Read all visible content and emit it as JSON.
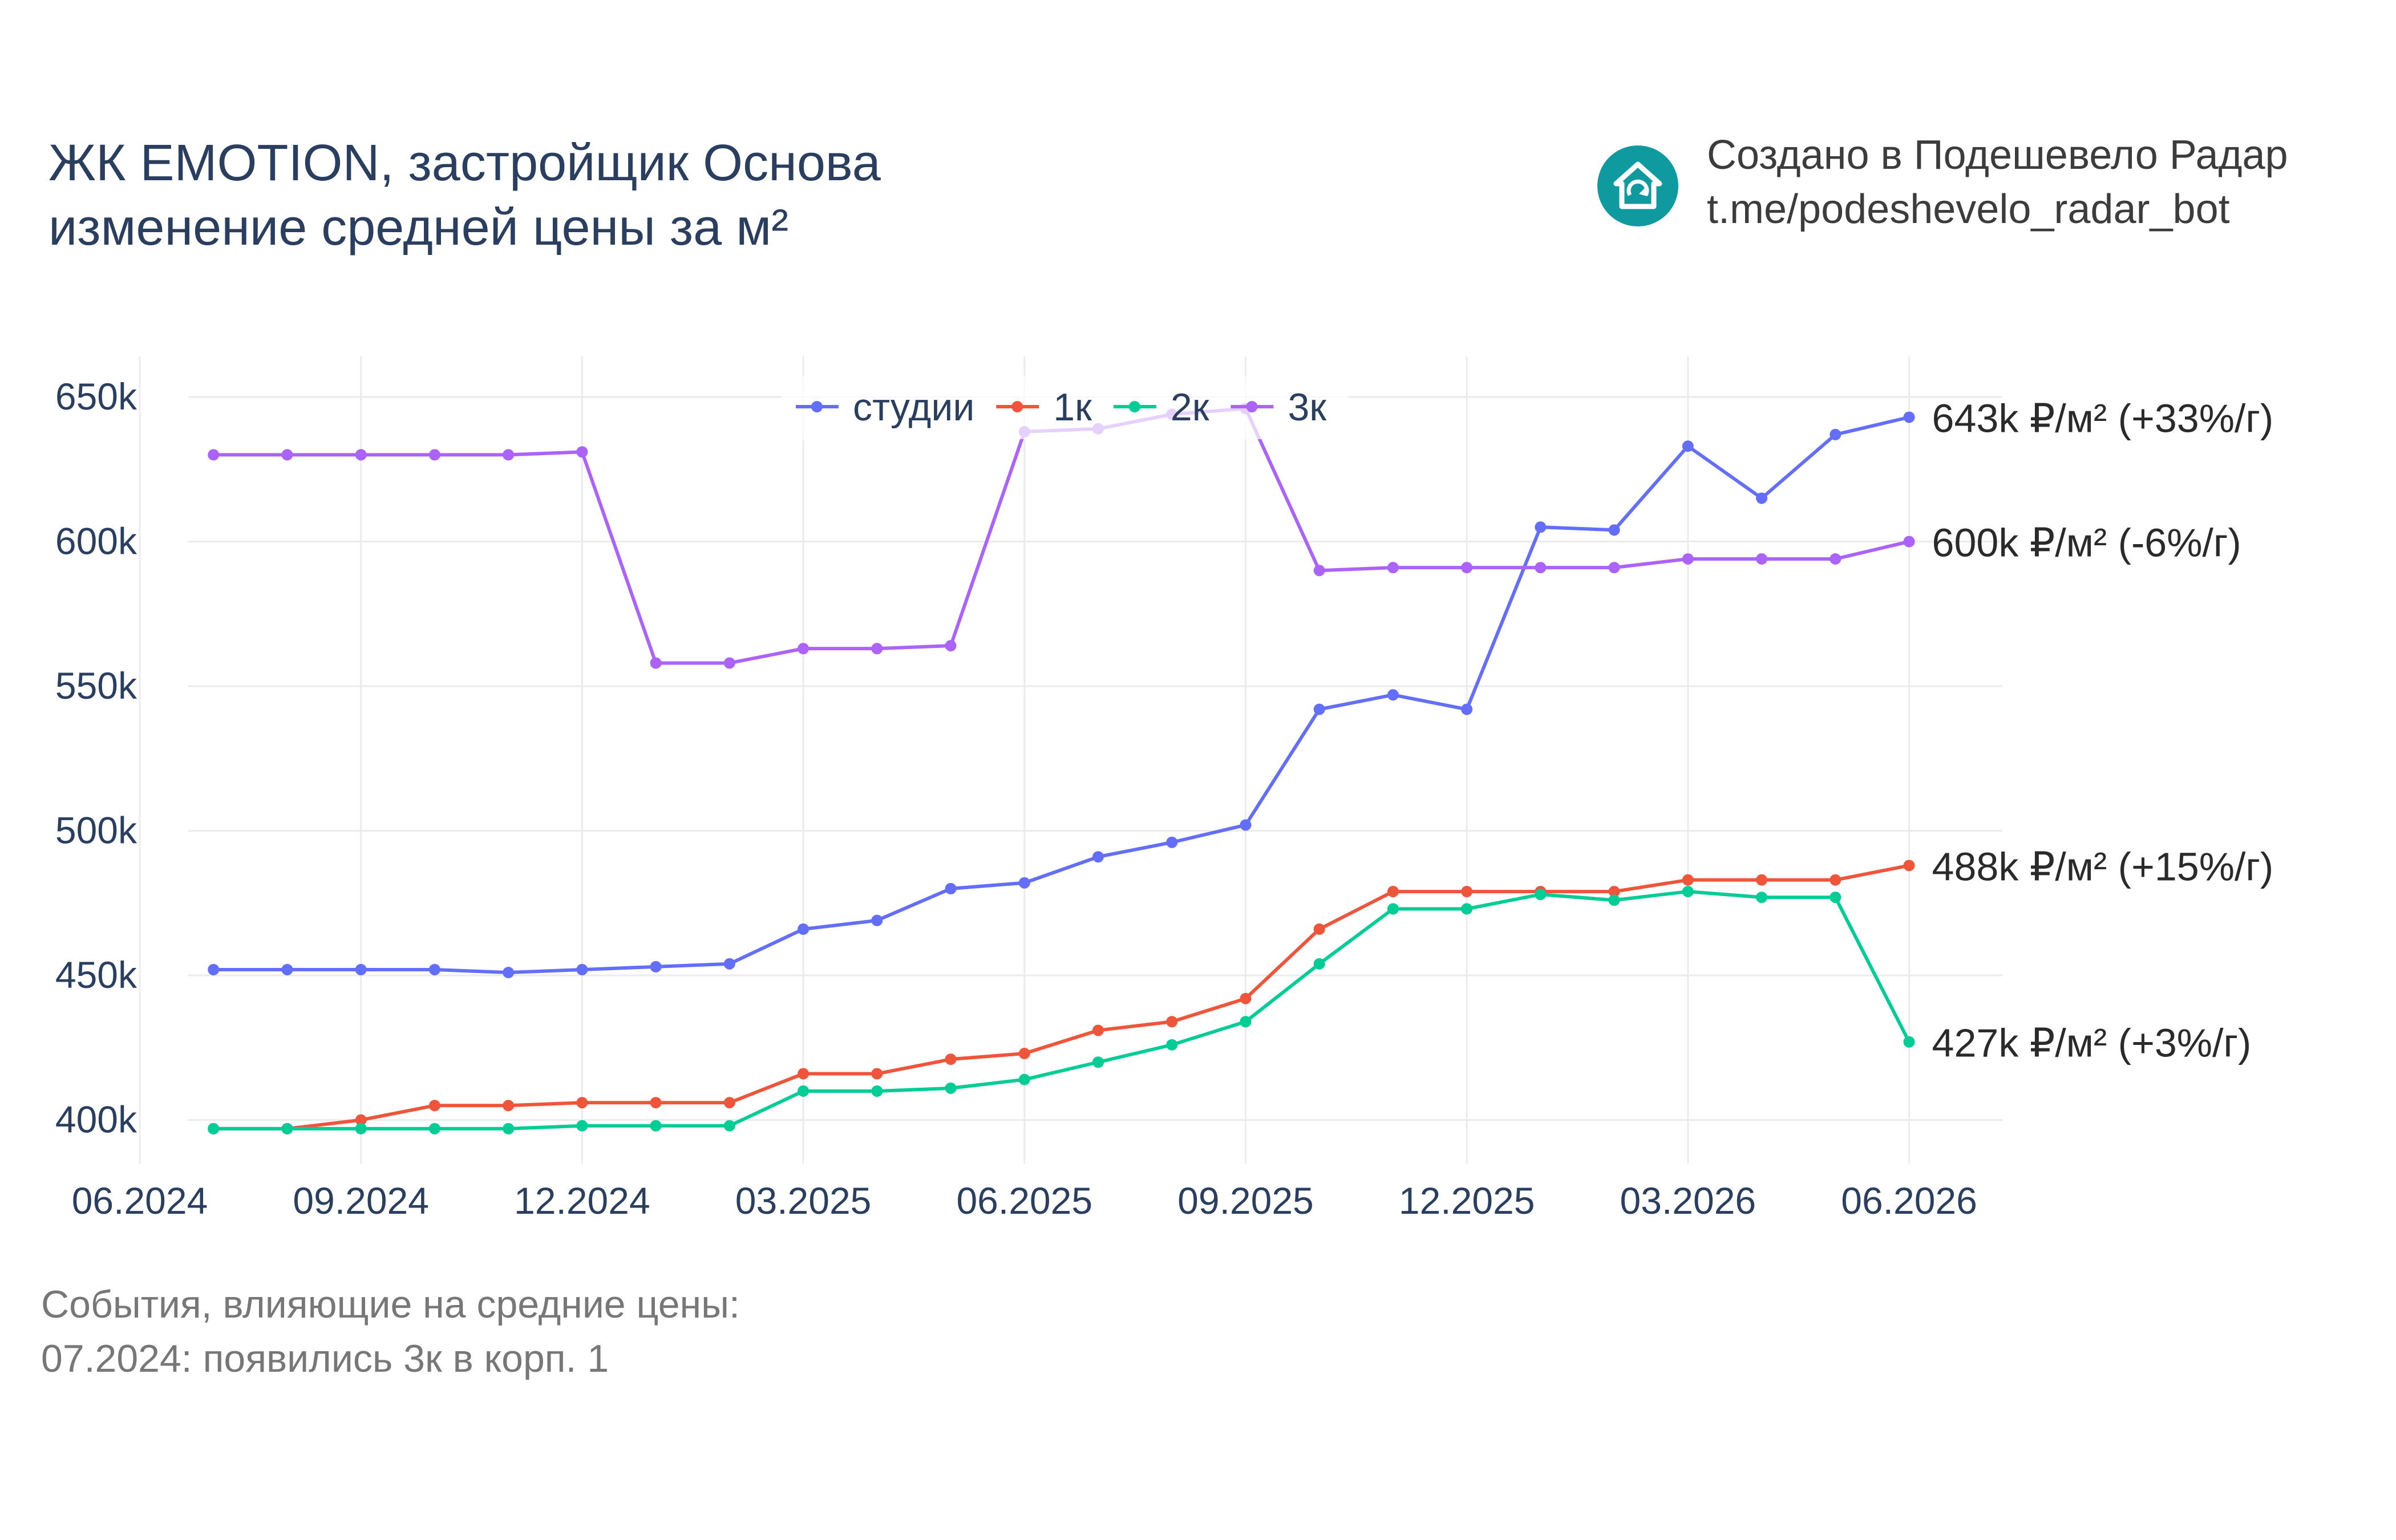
{
  "header": {
    "title_line1": "ЖК EMOTION, застройщик Основа",
    "title_line2": "изменение средней цены за м²"
  },
  "brand": {
    "line1": "Создано в Подешевело Радар",
    "line2": "t.me/podeshevelo_radar_bot",
    "logo_icon": "house-refresh-icon",
    "logo_color": "#0f9aa0"
  },
  "events": {
    "heading": "События, влияющие на средние цены:",
    "items": [
      "07.2024: появились 3к в корп. 1"
    ]
  },
  "chart_data": {
    "type": "line",
    "x": [
      "2024-07",
      "2024-08",
      "2024-09",
      "2024-10",
      "2024-11",
      "2024-12",
      "2025-01",
      "2025-02",
      "2025-03",
      "2025-04",
      "2025-05",
      "2025-06",
      "2025-07",
      "2025-08",
      "2025-09",
      "2025-10",
      "2025-11",
      "2025-12",
      "2026-01",
      "2026-02",
      "2026-03",
      "2026-04",
      "2026-05",
      "2026-06"
    ],
    "x_ticks": [
      {
        "date": "2024-06",
        "label": "06.2024"
      },
      {
        "date": "2024-09",
        "label": "09.2024"
      },
      {
        "date": "2024-12",
        "label": "12.2024"
      },
      {
        "date": "2025-03",
        "label": "03.2025"
      },
      {
        "date": "2025-06",
        "label": "06.2025"
      },
      {
        "date": "2025-09",
        "label": "09.2025"
      },
      {
        "date": "2025-12",
        "label": "12.2025"
      },
      {
        "date": "2026-03",
        "label": "03.2026"
      },
      {
        "date": "2026-06",
        "label": "06.2026"
      }
    ],
    "y_ticks": [
      {
        "value": 400000,
        "label": "400k"
      },
      {
        "value": 450000,
        "label": "450k"
      },
      {
        "value": 500000,
        "label": "500k"
      },
      {
        "value": 550000,
        "label": "550k"
      },
      {
        "value": 600000,
        "label": "600k"
      },
      {
        "value": 650000,
        "label": "650k"
      }
    ],
    "xlim": [
      "2024-06",
      "2026-08"
    ],
    "ylim": [
      381000,
      664000
    ],
    "grid": true,
    "legend_position": "top-center",
    "series": [
      {
        "name": "студии",
        "color": "#636efa",
        "values": [
          452000,
          452000,
          452000,
          452000,
          451000,
          452000,
          453000,
          454000,
          466000,
          469000,
          480000,
          482000,
          491000,
          496000,
          502000,
          542000,
          547000,
          542000,
          605000,
          604000,
          633000,
          615000,
          637000,
          643000
        ],
        "end_label": "643k ₽/м² (+33%/г)"
      },
      {
        "name": "1к",
        "color": "#ef553b",
        "values": [
          397000,
          397000,
          400000,
          405000,
          405000,
          406000,
          406000,
          406000,
          416000,
          416000,
          421000,
          423000,
          431000,
          434000,
          442000,
          466000,
          479000,
          479000,
          479000,
          479000,
          483000,
          483000,
          483000,
          488000
        ],
        "end_label": "488k ₽/м² (+15%/г)"
      },
      {
        "name": "2к",
        "color": "#00cc96",
        "values": [
          397000,
          397000,
          397000,
          397000,
          397000,
          398000,
          398000,
          398000,
          410000,
          410000,
          411000,
          414000,
          420000,
          426000,
          434000,
          454000,
          473000,
          473000,
          478000,
          476000,
          479000,
          477000,
          477000,
          427000
        ],
        "end_label": "427k ₽/м² (+3%/г)"
      },
      {
        "name": "3к",
        "color": "#ab63fa",
        "values": [
          630000,
          630000,
          630000,
          630000,
          630000,
          631000,
          558000,
          558000,
          563000,
          563000,
          564000,
          638000,
          639000,
          644000,
          646000,
          590000,
          591000,
          591000,
          591000,
          591000,
          594000,
          594000,
          594000,
          600000
        ],
        "end_label": "600k ₽/м² (-6%/г)"
      }
    ]
  }
}
